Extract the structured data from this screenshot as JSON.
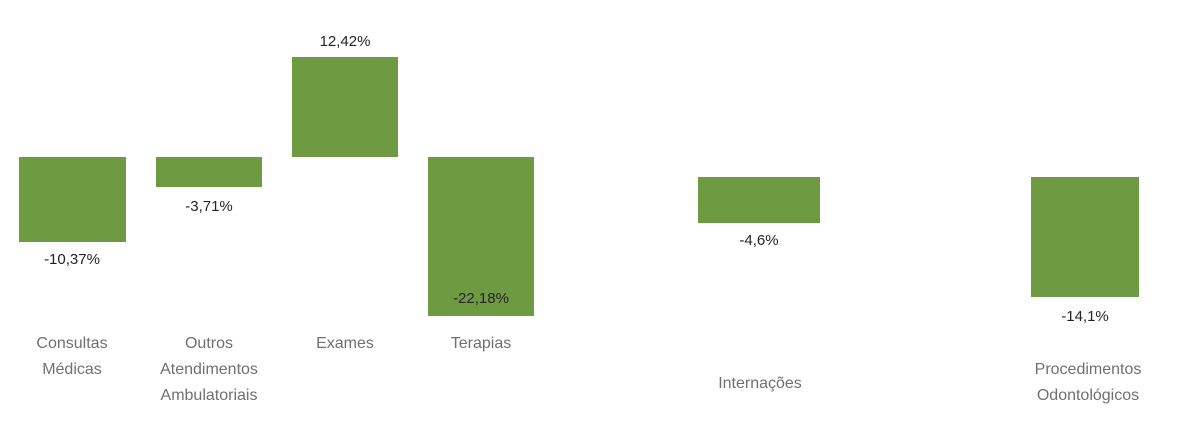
{
  "chart_data": {
    "type": "bar",
    "title": "",
    "categories": [
      "Consultas Médicas",
      "Outros Atendimentos Ambulatoriais",
      "Exames",
      "Terapias",
      "Internações",
      "Procedimentos Odontológicos"
    ],
    "values": [
      -10.37,
      -3.71,
      12.42,
      -22.18,
      -4.6,
      -14.1
    ],
    "unit": "%",
    "decimal_separator": ",",
    "bar_color": "#6E9A42",
    "value_label_color": "#252423",
    "category_label_color": "#707070",
    "grid": false,
    "legend": "none",
    "axes_visible": false,
    "data_labels": "on",
    "panels": [
      [
        "Consultas Médicas",
        "Outros Atendimentos Ambulatoriais",
        "Exames",
        "Terapias"
      ],
      [
        "Internações"
      ],
      [
        "Procedimentos Odontológicos"
      ]
    ]
  },
  "bars": [
    {
      "category": "Consultas\nMédicas",
      "value_label": "-10,37%"
    },
    {
      "category": "Outros\nAtendimentos\nAmbulatoriais",
      "value_label": "-3,71%"
    },
    {
      "category": "Exames",
      "value_label": "12,42%"
    },
    {
      "category": "Terapias",
      "value_label": "-22,18%"
    },
    {
      "category": "Internações",
      "value_label": "-4,6%"
    },
    {
      "category": "Procedimentos\nOdontológicos",
      "value_label": "-14,1%"
    }
  ]
}
